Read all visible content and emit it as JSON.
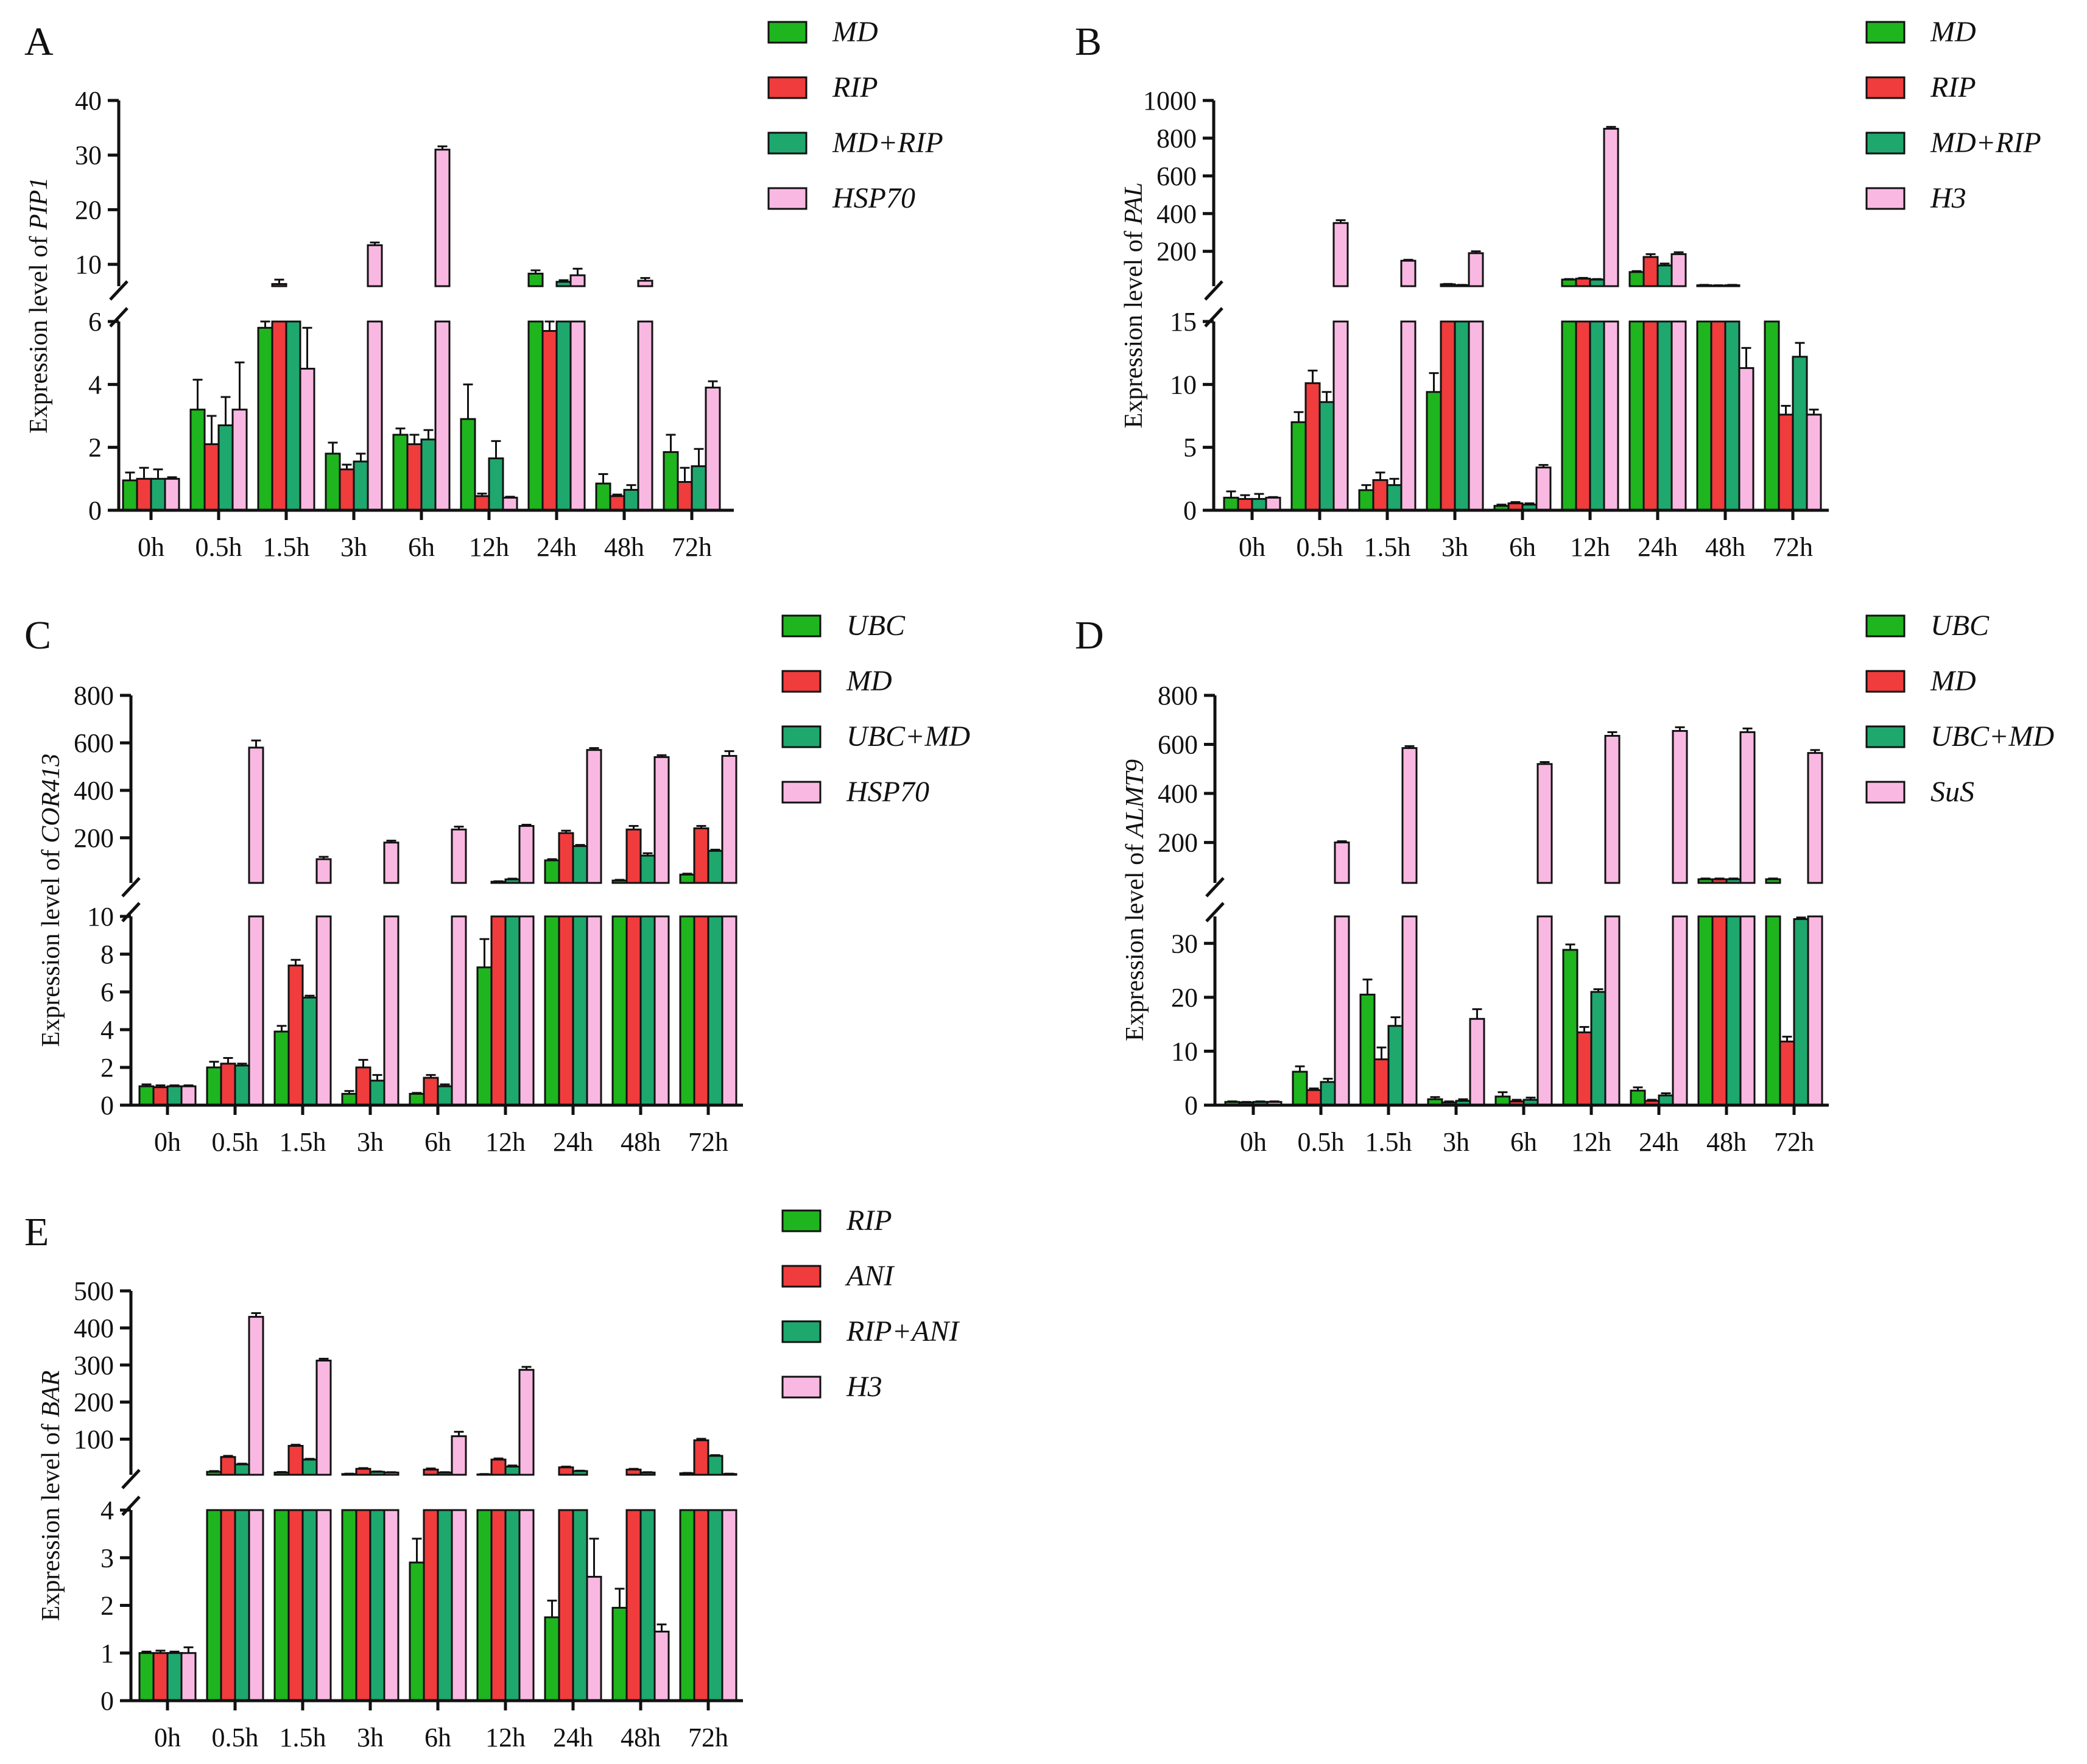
{
  "chart_data": [
    {
      "panel": "A",
      "type": "bar",
      "title": "",
      "xlabel": "",
      "ylabel_prefix": "Expression level of ",
      "ylabel_gene": "PIP1",
      "categories": [
        "0h",
        "0.5h",
        "1.5h",
        "3h",
        "6h",
        "12h",
        "24h",
        "48h",
        "72h"
      ],
      "axis_break": {
        "lower": [
          0,
          6
        ],
        "upper": [
          6,
          40
        ]
      },
      "lower_ticks": [
        0,
        2,
        4,
        6
      ],
      "upper_ticks": [
        10,
        20,
        30,
        40
      ],
      "series": [
        {
          "name": "MD",
          "color": "#1fb51f",
          "values": [
            0.95,
            3.2,
            5.8,
            1.8,
            2.4,
            2.9,
            8.3,
            0.85,
            1.85
          ],
          "errors": [
            0.25,
            0.95,
            0.3,
            0.35,
            0.2,
            1.1,
            0.6,
            0.3,
            0.55
          ]
        },
        {
          "name": "RIP",
          "color": "#f03c3c",
          "values": [
            1.0,
            2.1,
            6.4,
            1.3,
            2.1,
            0.45,
            5.7,
            0.45,
            0.9
          ],
          "errors": [
            0.35,
            0.9,
            0.8,
            0.15,
            0.3,
            0.08,
            0.3,
            0.05,
            0.45
          ]
        },
        {
          "name": "MD+RIP",
          "color": "#1ea86e",
          "values": [
            1.0,
            2.7,
            6.0,
            1.55,
            2.25,
            1.65,
            6.8,
            0.65,
            1.4
          ],
          "errors": [
            0.3,
            0.9,
            0.5,
            0.25,
            0.3,
            0.55,
            0.3,
            0.15,
            0.55
          ]
        },
        {
          "name": "HSP70",
          "color": "#f9b8e2",
          "values": [
            1.0,
            3.2,
            4.5,
            13.5,
            31.0,
            0.4,
            8.0,
            7.0,
            3.9
          ],
          "errors": [
            0.05,
            1.5,
            1.3,
            0.5,
            0.6,
            0.03,
            1.2,
            0.5,
            0.2
          ]
        }
      ]
    },
    {
      "panel": "B",
      "type": "bar",
      "title": "",
      "xlabel": "",
      "ylabel_prefix": "Expression level of ",
      "ylabel_gene": "PAL",
      "categories": [
        "0h",
        "0.5h",
        "1.5h",
        "3h",
        "6h",
        "12h",
        "24h",
        "48h",
        "72h"
      ],
      "axis_break": {
        "lower": [
          0,
          15
        ],
        "upper": [
          15,
          1000
        ]
      },
      "lower_ticks": [
        0,
        5,
        10,
        15
      ],
      "upper_ticks": [
        200,
        400,
        600,
        800,
        1000
      ],
      "series": [
        {
          "name": "MD",
          "color": "#1fb51f",
          "values": [
            1.0,
            7.0,
            1.6,
            9.4,
            0.35,
            50,
            90,
            20,
            15
          ],
          "errors": [
            0.5,
            0.8,
            0.4,
            1.5,
            0.1,
            3,
            5,
            2,
            1
          ]
        },
        {
          "name": "RIP",
          "color": "#f03c3c",
          "values": [
            0.9,
            10.1,
            2.4,
            25,
            0.55,
            55,
            170,
            18,
            7.6
          ],
          "errors": [
            0.3,
            1.0,
            0.6,
            2,
            0.1,
            4,
            15,
            2,
            0.7
          ]
        },
        {
          "name": "MD+RIP",
          "color": "#1ea86e",
          "values": [
            0.9,
            8.6,
            2.0,
            20,
            0.45,
            50,
            125,
            20,
            12.2
          ],
          "errors": [
            0.4,
            0.8,
            0.5,
            2,
            0.1,
            3,
            10,
            2,
            1.1
          ]
        },
        {
          "name": "H3",
          "color": "#f9b8e2",
          "values": [
            1.0,
            350,
            150,
            190,
            3.4,
            850,
            185,
            11.3,
            7.6
          ],
          "errors": [
            0.05,
            15,
            5,
            10,
            0.2,
            10,
            10,
            1.6,
            0.4
          ]
        }
      ]
    },
    {
      "panel": "C",
      "type": "bar",
      "title": "",
      "xlabel": "",
      "ylabel_prefix": "Expression level of ",
      "ylabel_gene": "COR413",
      "categories": [
        "0h",
        "0.5h",
        "1.5h",
        "3h",
        "6h",
        "12h",
        "24h",
        "48h",
        "72h"
      ],
      "axis_break": {
        "lower": [
          0,
          10
        ],
        "upper": [
          10,
          800
        ]
      },
      "lower_ticks": [
        0,
        2,
        4,
        6,
        8,
        10
      ],
      "upper_ticks": [
        200,
        400,
        600,
        800
      ],
      "series": [
        {
          "name": "UBC",
          "color": "#1fb51f",
          "values": [
            1.0,
            2.0,
            3.9,
            0.6,
            0.6,
            7.3,
            105,
            20,
            45
          ],
          "errors": [
            0.1,
            0.3,
            0.3,
            0.15,
            0.05,
            1.5,
            5,
            3,
            4
          ]
        },
        {
          "name": "MD",
          "color": "#f03c3c",
          "values": [
            0.95,
            2.2,
            7.4,
            2.0,
            1.45,
            15,
            220,
            235,
            240
          ],
          "errors": [
            0.1,
            0.3,
            0.3,
            0.4,
            0.15,
            2,
            10,
            15,
            10
          ]
        },
        {
          "name": "UBC+MD",
          "color": "#1ea86e",
          "values": [
            1.0,
            2.1,
            5.7,
            1.3,
            1.0,
            25,
            165,
            125,
            145
          ],
          "errors": [
            0.05,
            0.1,
            0.1,
            0.3,
            0.1,
            3,
            5,
            10,
            5
          ]
        },
        {
          "name": "HSP70",
          "color": "#f9b8e2",
          "values": [
            1.0,
            580,
            110,
            180,
            235,
            250,
            570,
            540,
            545
          ],
          "errors": [
            0.05,
            30,
            10,
            8,
            12,
            5,
            8,
            8,
            20
          ]
        }
      ]
    },
    {
      "panel": "D",
      "type": "bar",
      "title": "",
      "xlabel": "",
      "ylabel_prefix": "Expression level of ",
      "ylabel_gene": "ALMT9",
      "categories": [
        "0h",
        "0.5h",
        "1.5h",
        "3h",
        "6h",
        "12h",
        "24h",
        "48h",
        "72h"
      ],
      "axis_break": {
        "lower": [
          0,
          35
        ],
        "upper": [
          35,
          800
        ]
      },
      "lower_ticks": [
        0,
        10,
        20,
        30
      ],
      "upper_ticks": [
        200,
        400,
        600,
        800
      ],
      "series": [
        {
          "name": "UBC",
          "color": "#1fb51f",
          "values": [
            0.6,
            6.2,
            20.5,
            1.1,
            1.6,
            28.8,
            2.7,
            50,
            50
          ],
          "errors": [
            0.1,
            1.0,
            2.8,
            0.4,
            0.8,
            1.0,
            0.6,
            3,
            3
          ]
        },
        {
          "name": "MD",
          "color": "#f03c3c",
          "values": [
            0.5,
            2.8,
            8.5,
            0.5,
            0.7,
            13.5,
            0.8,
            50,
            11.8
          ],
          "errors": [
            0.1,
            0.3,
            2.2,
            0.2,
            0.3,
            1.0,
            0.2,
            3,
            0.9
          ]
        },
        {
          "name": "UBC+MD",
          "color": "#1ea86e",
          "values": [
            0.6,
            4.3,
            14.7,
            0.8,
            1.0,
            21.0,
            1.8,
            50,
            34.5
          ],
          "errors": [
            0.1,
            0.6,
            1.6,
            0.3,
            0.4,
            0.5,
            0.4,
            3,
            0.3
          ]
        },
        {
          "name": "SuS",
          "color": "#f9b8e2",
          "values": [
            0.6,
            200,
            585,
            16.0,
            520,
            635,
            655,
            650,
            565
          ],
          "errors": [
            0.1,
            5,
            8,
            1.8,
            8,
            15,
            15,
            15,
            12
          ]
        }
      ]
    },
    {
      "panel": "E",
      "type": "bar",
      "title": "",
      "xlabel": "",
      "ylabel_prefix": "Expression level of ",
      "ylabel_gene": "BAR",
      "categories": [
        "0h",
        "0.5h",
        "1.5h",
        "3h",
        "6h",
        "12h",
        "24h",
        "48h",
        "72h"
      ],
      "axis_break": {
        "lower": [
          0,
          4
        ],
        "upper": [
          4,
          500
        ]
      },
      "lower_ticks": [
        0,
        1,
        2,
        3,
        4
      ],
      "upper_ticks": [
        100,
        200,
        300,
        400,
        500
      ],
      "series": [
        {
          "name": "RIP",
          "color": "#1fb51f",
          "values": [
            1.0,
            12,
            10,
            6,
            2.9,
            5,
            1.75,
            1.95,
            8
          ],
          "errors": [
            0.03,
            2,
            1.5,
            1,
            0.5,
            1,
            0.35,
            0.4,
            1
          ]
        },
        {
          "name": "ANI",
          "color": "#f03c3c",
          "values": [
            1.0,
            52,
            82,
            20,
            18,
            45,
            24,
            18,
            97
          ],
          "errors": [
            0.05,
            3,
            3,
            2,
            3,
            3,
            2,
            2,
            4
          ]
        },
        {
          "name": "RIP+ANI",
          "color": "#1ea86e",
          "values": [
            1.0,
            32,
            45,
            12,
            10,
            26,
            14,
            10,
            55
          ],
          "errors": [
            0.03,
            2,
            2,
            1,
            1,
            3,
            1,
            1,
            2
          ]
        },
        {
          "name": "H3",
          "color": "#f9b8e2",
          "values": [
            1.0,
            430,
            312,
            10,
            108,
            287,
            2.6,
            1.45,
            6
          ],
          "errors": [
            0.12,
            10,
            5,
            1,
            12,
            8,
            0.8,
            0.15,
            1
          ]
        }
      ]
    }
  ]
}
